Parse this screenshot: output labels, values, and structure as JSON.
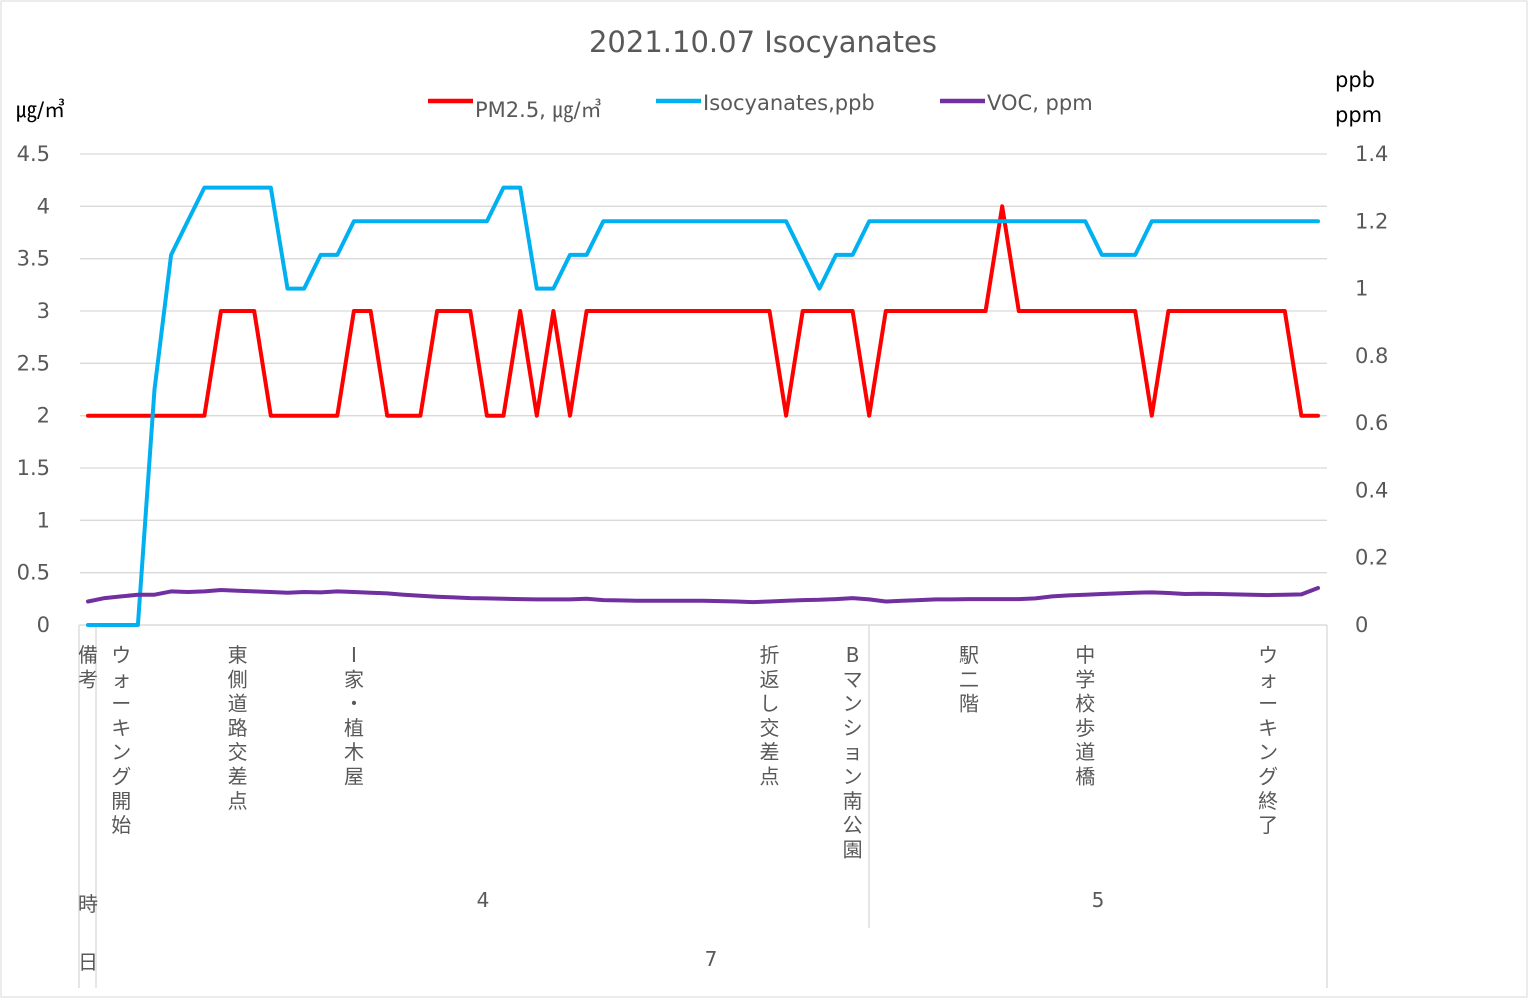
{
  "chart_data": {
    "type": "line",
    "title": "2021.10.07 Isocyanates",
    "left_axis": {
      "unit": "㎍/㎥",
      "ylim": [
        0,
        4.5
      ],
      "ticks": [
        "4.5",
        "4",
        "3.5",
        "3",
        "2.5",
        "2",
        "1.5",
        "1",
        "0.5",
        "0"
      ]
    },
    "right_axis": {
      "unit_1": "ppb",
      "unit_2": "ppm",
      "ylim": [
        0,
        1.4
      ],
      "ticks": [
        "1.4",
        "1.2",
        "1",
        "0.8",
        "0.6",
        "0.4",
        "0.2",
        "0"
      ]
    },
    "legend_position": "top",
    "series": [
      {
        "name": "PM2.5, ㎍/㎥",
        "axis": "left",
        "color": "#ff0000",
        "values": [
          2,
          2,
          2,
          2,
          2,
          2,
          2,
          2,
          3,
          3,
          3,
          2,
          2,
          2,
          2,
          2,
          3,
          3,
          2,
          2,
          2,
          3,
          3,
          3,
          2,
          2,
          3,
          2,
          3,
          2,
          3,
          3,
          3,
          3,
          3,
          3,
          3,
          3,
          3,
          3,
          3,
          3,
          2,
          3,
          3,
          3,
          3,
          2,
          3,
          3,
          3,
          3,
          3,
          3,
          3,
          4,
          3,
          3,
          3,
          3,
          3,
          3,
          3,
          3,
          2,
          3,
          3,
          3,
          3,
          3,
          3,
          3,
          3,
          2,
          2
        ]
      },
      {
        "name": "Isocyanates,ppb",
        "axis": "right",
        "color": "#00b0f0",
        "values": [
          0,
          0,
          0,
          0,
          0.7,
          1.1,
          1.2,
          1.3,
          1.3,
          1.3,
          1.3,
          1.3,
          1.0,
          1.0,
          1.1,
          1.1,
          1.2,
          1.2,
          1.2,
          1.2,
          1.2,
          1.2,
          1.2,
          1.2,
          1.2,
          1.3,
          1.3,
          1.0,
          1.0,
          1.1,
          1.1,
          1.2,
          1.2,
          1.2,
          1.2,
          1.2,
          1.2,
          1.2,
          1.2,
          1.2,
          1.2,
          1.2,
          1.2,
          1.1,
          1.0,
          1.1,
          1.1,
          1.2,
          1.2,
          1.2,
          1.2,
          1.2,
          1.2,
          1.2,
          1.2,
          1.2,
          1.2,
          1.2,
          1.2,
          1.2,
          1.2,
          1.1,
          1.1,
          1.1,
          1.2,
          1.2,
          1.2,
          1.2,
          1.2,
          1.2,
          1.2,
          1.2,
          1.2,
          1.2,
          1.2
        ]
      },
      {
        "name": "VOC, ppm",
        "axis": "right",
        "color": "#7030a0",
        "values": [
          0.07,
          0.08,
          0.085,
          0.09,
          0.09,
          0.1,
          0.098,
          0.1,
          0.104,
          0.102,
          0.1,
          0.098,
          0.096,
          0.098,
          0.097,
          0.1,
          0.098,
          0.096,
          0.094,
          0.09,
          0.087,
          0.084,
          0.082,
          0.08,
          0.079,
          0.078,
          0.077,
          0.076,
          0.076,
          0.076,
          0.078,
          0.074,
          0.073,
          0.072,
          0.072,
          0.072,
          0.072,
          0.072,
          0.071,
          0.07,
          0.068,
          0.07,
          0.072,
          0.074,
          0.075,
          0.077,
          0.08,
          0.076,
          0.07,
          0.072,
          0.074,
          0.076,
          0.076,
          0.077,
          0.077,
          0.077,
          0.077,
          0.079,
          0.085,
          0.088,
          0.09,
          0.092,
          0.094,
          0.096,
          0.097,
          0.095,
          0.092,
          0.093,
          0.092,
          0.091,
          0.09,
          0.089,
          0.09,
          0.091,
          0.11
        ]
      }
    ],
    "category_labels": [
      {
        "index": 0,
        "text": "備考"
      },
      {
        "index": 2,
        "text": "ウォーキング開始"
      },
      {
        "index": 9,
        "text": "東側道路交差点"
      },
      {
        "index": 16,
        "text": "I家・植木屋"
      },
      {
        "index": 41,
        "text": "折返し交差点"
      },
      {
        "index": 46,
        "text": "Bマンション南公園"
      },
      {
        "index": 53,
        "text": "駅二階"
      },
      {
        "index": 60,
        "text": "中学校歩道橋"
      },
      {
        "index": 71,
        "text": "ウォーキング終了"
      }
    ],
    "hour_row": {
      "label": "時",
      "groups": [
        "4",
        "5"
      ]
    },
    "day_row": {
      "label": "日",
      "groups": [
        "7"
      ]
    }
  }
}
